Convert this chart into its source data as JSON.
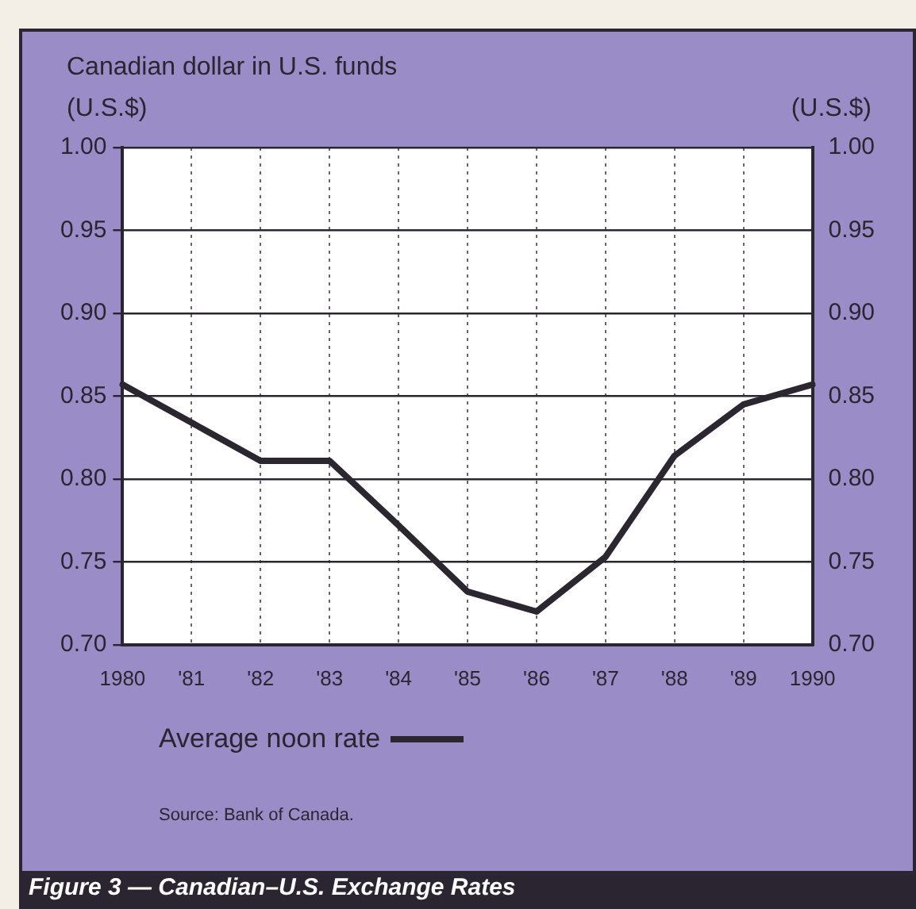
{
  "chart_data": {
    "type": "line",
    "title": "Figure 3 — Canadian–U.S. Exchange Rates",
    "subtitle": "Canadian dollar in U.S. funds",
    "ylabel": "(U.S.$)",
    "y2label": "(U.S.$)",
    "categories": [
      "1980",
      "'81",
      "'82",
      "'83",
      "'84",
      "'85",
      "'86",
      "'87",
      "'88",
      "'89",
      "1990"
    ],
    "series": [
      {
        "name": "Average noon rate",
        "color": "#2b2630",
        "values": [
          0.857,
          0.834,
          0.811,
          0.811,
          0.772,
          0.732,
          0.72,
          0.753,
          0.814,
          0.845,
          0.857
        ]
      }
    ],
    "ylim": [
      0.7,
      1.0
    ],
    "yticks": [
      {
        "value": 0.7,
        "label": "0.70"
      },
      {
        "value": 0.75,
        "label": "0.75"
      },
      {
        "value": 0.8,
        "label": "0.80"
      },
      {
        "value": 0.85,
        "label": "0.85"
      },
      {
        "value": 0.9,
        "label": "0.90"
      },
      {
        "value": 0.95,
        "label": "0.95"
      },
      {
        "value": 1.0,
        "label": "1.00"
      }
    ],
    "y2lim": [
      0.7,
      1.0
    ],
    "y2ticks": [
      {
        "value": 0.7,
        "label": "0.70"
      },
      {
        "value": 0.75,
        "label": "0.75"
      },
      {
        "value": 0.8,
        "label": "0.80"
      },
      {
        "value": 0.85,
        "label": "0.85"
      },
      {
        "value": 0.9,
        "label": "0.90"
      },
      {
        "value": 0.95,
        "label": "0.95"
      },
      {
        "value": 1.0,
        "label": "1.00"
      }
    ],
    "grid": true,
    "legend": "bottom",
    "marker": "none",
    "line_style": "solid",
    "annotations": [
      "Source: Bank of Canada."
    ]
  }
}
